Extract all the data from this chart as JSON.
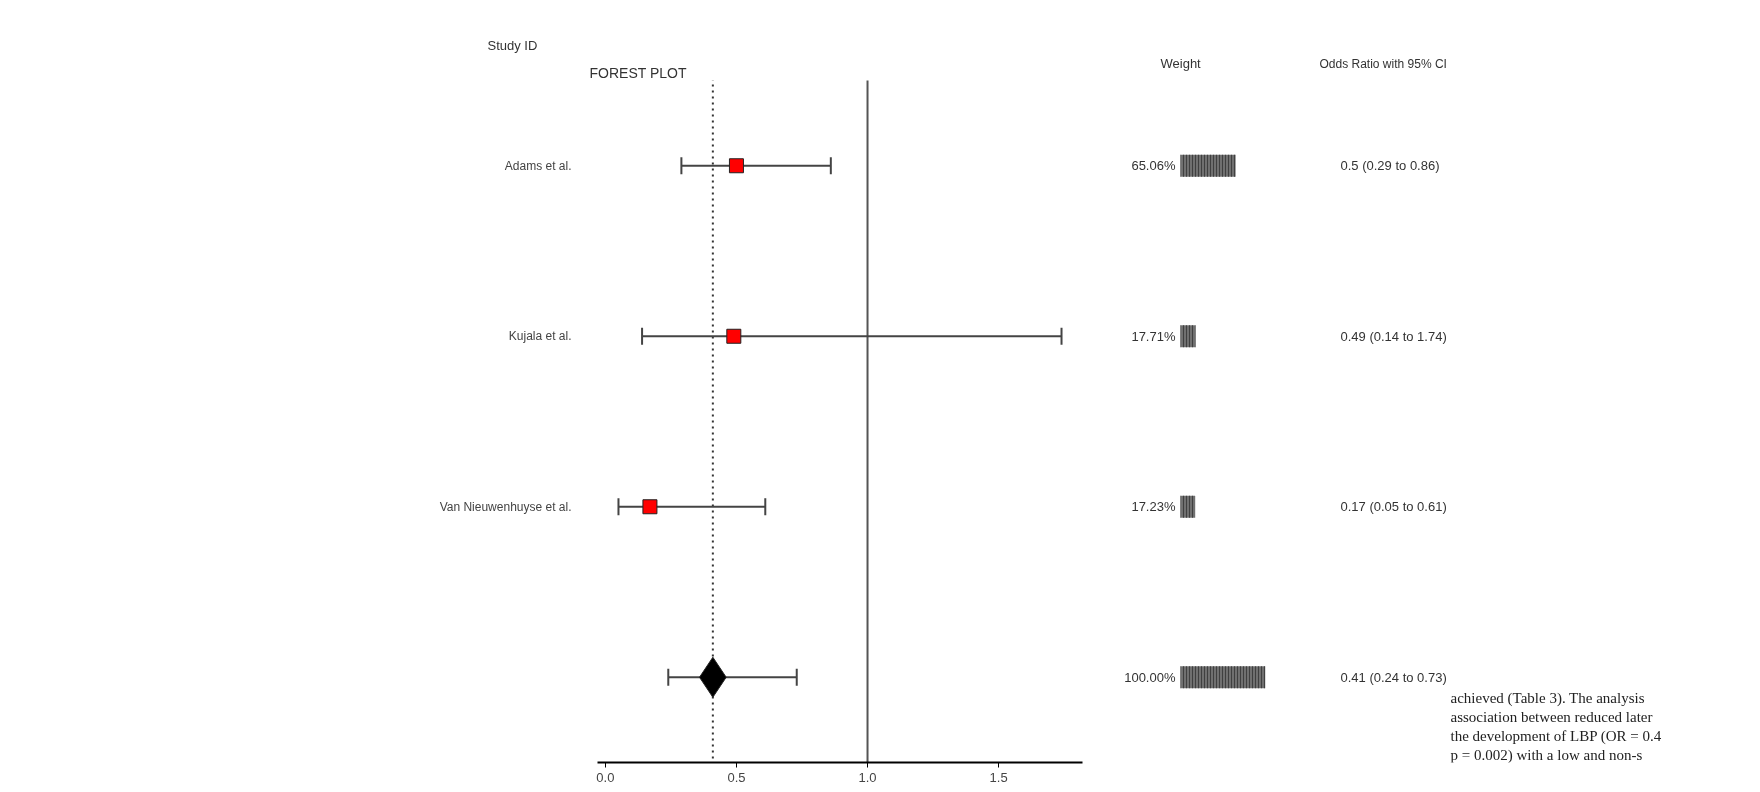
{
  "chart_data": [
    {
      "type": "scatter",
      "orientation": "horizontal",
      "title": "FOREST PLOT",
      "ylabel": "Study ID",
      "categories": [
        "Adams et al.",
        "Kujala et al.",
        "Van Nieuwenhuyse et al.",
        null
      ],
      "series": [
        {
          "marker": "square",
          "color": "#ff0000",
          "values": [
            0.5,
            0.49,
            0.17,
            null
          ],
          "errors": [
            [
              0.29,
              0.86
            ],
            [
              0.14,
              1.74
            ],
            [
              0.05,
              0.61
            ],
            null
          ]
        },
        {
          "marker": "diamond",
          "color": "#000000",
          "values": [
            null,
            null,
            null,
            0.41
          ],
          "errors": [
            null,
            null,
            null,
            [
              0.24,
              0.73
            ]
          ]
        }
      ],
      "xlim": [
        -0.03,
        1.82
      ],
      "xticks": [
        {
          "value": 0,
          "label": "0.0"
        },
        0.5,
        {
          "value": 1,
          "label": "1.0"
        },
        1.5
      ],
      "ref_lines": [
        {
          "axis": "x",
          "value": 0.41,
          "line_style": "dotted",
          "color": "#333333"
        },
        {
          "axis": "x",
          "value": 1,
          "line_style": "solid",
          "color": "#555555"
        }
      ],
      "annotations": [
        "achieved (Table 3). The analysis",
        "association between reduced later",
        "the development of LBP (OR = 0.4",
        "p = 0.002) with a low and non-s"
      ]
    },
    {
      "type": "bar",
      "orientation": "horizontal",
      "title": "Weight",
      "categories": [
        null,
        null,
        null,
        null
      ],
      "values": [
        65.06,
        17.71,
        17.23,
        100
      ],
      "value_labels": [
        "65.06%",
        "17.71%",
        "17.23%",
        "100.00%"
      ],
      "color": "#707070"
    },
    {
      "type": "other",
      "title": "Odds Ratio with 95% CI",
      "annotations": [
        "0.5 (0.29 to 0.86)",
        "0.49 (0.14 to 1.74)",
        "0.17 (0.05 to 0.61)",
        "0.41 (0.24 to 0.73)"
      ]
    }
  ]
}
